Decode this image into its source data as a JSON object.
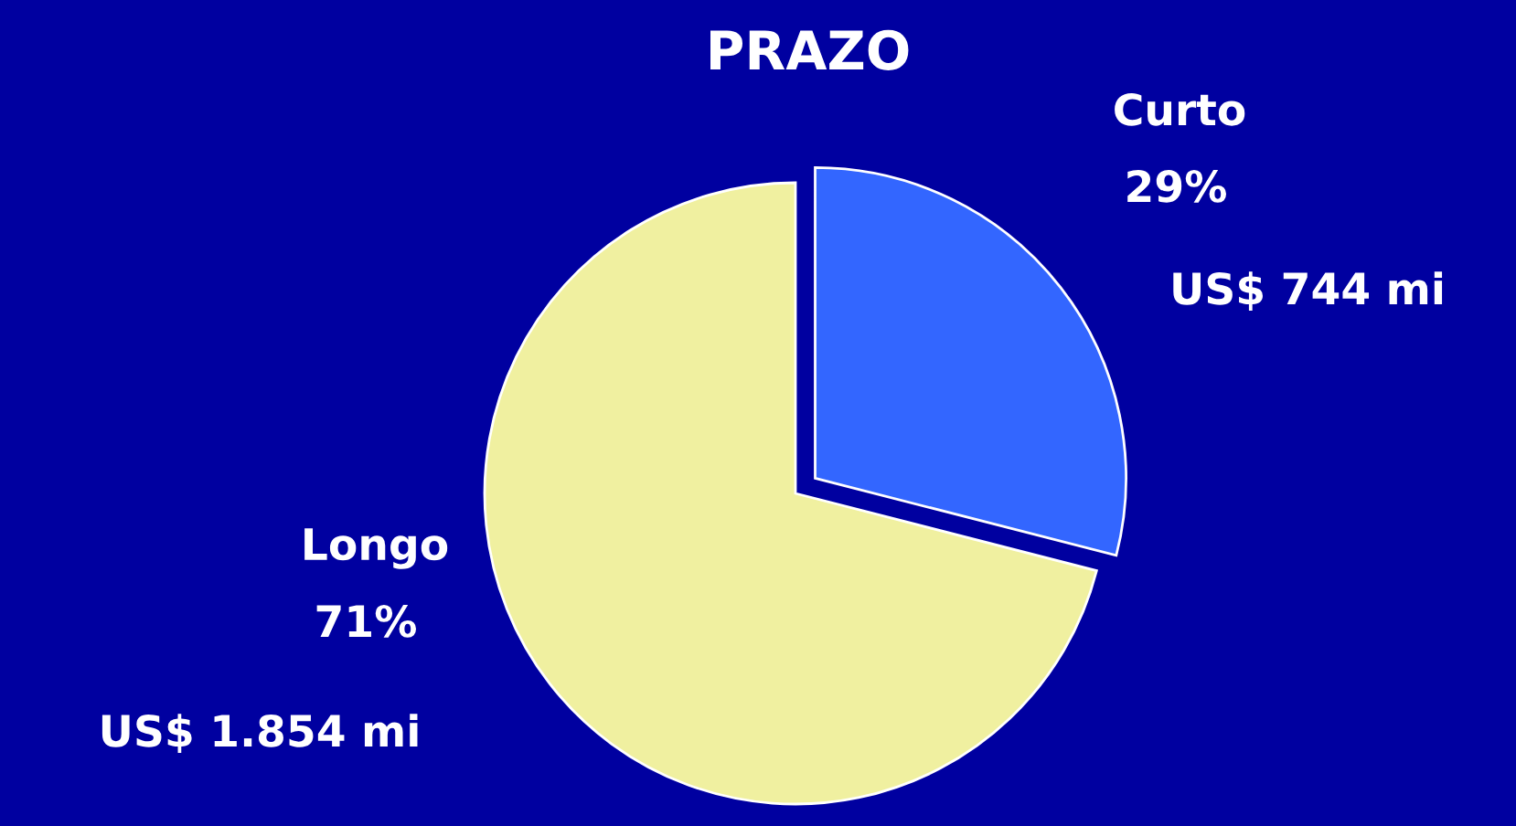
{
  "chart_data": {
    "type": "pie",
    "title": "PRAZO",
    "categories": [
      "Curto",
      "Longo"
    ],
    "values": [
      29,
      71
    ],
    "value_labels": [
      "29%",
      "71%"
    ],
    "colors": [
      "#3366ff",
      "#f0f0a0"
    ],
    "annotations": [
      "US$ 744 mi",
      "US$ 1.854 mi"
    ]
  }
}
